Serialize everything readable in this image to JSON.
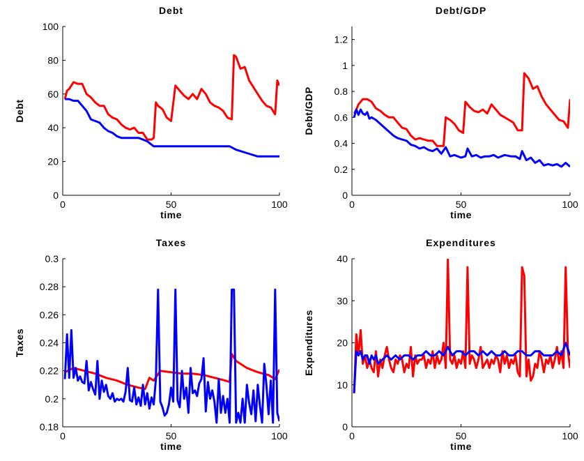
{
  "chart_data": [
    {
      "type": "line",
      "title": "Debt",
      "xlabel": "time",
      "ylabel": "Debt",
      "xlim": [
        0,
        100
      ],
      "ylim": [
        0,
        100
      ],
      "xticks": [
        0,
        50,
        100
      ],
      "yticks": [
        0,
        20,
        40,
        60,
        80,
        100
      ],
      "grid": false,
      "series": [
        {
          "color": "#ff0000",
          "x": [
            1,
            2,
            3,
            5,
            7,
            9,
            11,
            13,
            15,
            17,
            19,
            21,
            23,
            25,
            27,
            29,
            31,
            33,
            35,
            37,
            39,
            41,
            42,
            43,
            44,
            46,
            48,
            50,
            52,
            54,
            56,
            58,
            60,
            62,
            64,
            66,
            68,
            70,
            72,
            74,
            76,
            78,
            79,
            80,
            82,
            84,
            86,
            88,
            90,
            92,
            94,
            96,
            98,
            99,
            100
          ],
          "y": [
            57,
            62,
            63,
            67,
            66,
            66,
            60,
            58,
            55,
            53,
            53,
            48,
            46,
            45,
            42,
            40,
            39,
            40,
            37,
            37,
            33,
            33,
            34,
            55,
            53,
            51,
            46,
            44,
            65,
            62,
            59,
            57,
            60,
            57,
            63,
            60,
            55,
            53,
            52,
            50,
            46,
            45,
            83,
            82,
            75,
            76,
            68,
            64,
            60,
            56,
            53,
            52,
            48,
            68,
            65
          ]
        },
        {
          "color": "#0000ff",
          "x": [
            1,
            3,
            5,
            7,
            9,
            11,
            13,
            15,
            17,
            19,
            21,
            23,
            25,
            27,
            29,
            31,
            33,
            35,
            37,
            39,
            41,
            42,
            45,
            50,
            55,
            60,
            65,
            70,
            75,
            77,
            80,
            85,
            90,
            95,
            98,
            100
          ],
          "y": [
            57,
            57,
            56,
            56,
            53,
            50,
            45,
            44,
            43,
            40,
            38,
            37,
            35,
            34,
            34,
            34,
            34,
            34,
            33,
            32,
            30,
            29,
            29,
            29,
            29,
            29,
            29,
            29,
            29,
            29,
            27,
            25,
            23,
            23,
            23,
            23
          ]
        }
      ]
    },
    {
      "type": "line",
      "title": "Debt/GDP",
      "xlabel": "time",
      "ylabel": "Debt/GDP",
      "xlim": [
        0,
        100
      ],
      "ylim": [
        0,
        1.3
      ],
      "xticks": [
        0,
        50,
        100
      ],
      "yticks": [
        0,
        0.2,
        0.4,
        0.6,
        0.8,
        1,
        1.2
      ],
      "grid": false,
      "series": [
        {
          "color": "#ff0000",
          "x": [
            1,
            2,
            3,
            5,
            7,
            9,
            11,
            13,
            15,
            17,
            19,
            21,
            23,
            25,
            27,
            29,
            31,
            33,
            35,
            37,
            39,
            41,
            42,
            43,
            45,
            47,
            49,
            51,
            52,
            54,
            56,
            58,
            60,
            62,
            64,
            66,
            68,
            70,
            72,
            74,
            76,
            78,
            79,
            81,
            83,
            85,
            87,
            89,
            91,
            93,
            95,
            97,
            99,
            100
          ],
          "y": [
            0.63,
            0.66,
            0.7,
            0.74,
            0.74,
            0.72,
            0.67,
            0.65,
            0.62,
            0.6,
            0.6,
            0.56,
            0.52,
            0.51,
            0.46,
            0.43,
            0.44,
            0.43,
            0.42,
            0.42,
            0.38,
            0.38,
            0.38,
            0.6,
            0.58,
            0.55,
            0.5,
            0.48,
            0.72,
            0.68,
            0.65,
            0.64,
            0.66,
            0.63,
            0.7,
            0.66,
            0.62,
            0.6,
            0.58,
            0.56,
            0.5,
            0.5,
            0.94,
            0.9,
            0.82,
            0.84,
            0.76,
            0.7,
            0.66,
            0.62,
            0.58,
            0.57,
            0.52,
            0.74
          ]
        },
        {
          "color": "#0000ff",
          "x": [
            1,
            2,
            3,
            4,
            5,
            6,
            7,
            8,
            9,
            11,
            13,
            15,
            17,
            19,
            21,
            23,
            25,
            27,
            29,
            31,
            33,
            35,
            37,
            39,
            41,
            43,
            45,
            47,
            50,
            52,
            53,
            55,
            57,
            59,
            61,
            63,
            65,
            67,
            70,
            73,
            75,
            77,
            78,
            80,
            82,
            84,
            86,
            88,
            90,
            92,
            94,
            96,
            98,
            100
          ],
          "y": [
            0.6,
            0.66,
            0.62,
            0.66,
            0.63,
            0.62,
            0.64,
            0.59,
            0.6,
            0.58,
            0.55,
            0.52,
            0.49,
            0.46,
            0.44,
            0.43,
            0.42,
            0.39,
            0.38,
            0.36,
            0.37,
            0.35,
            0.34,
            0.36,
            0.32,
            0.37,
            0.3,
            0.31,
            0.29,
            0.3,
            0.36,
            0.3,
            0.31,
            0.29,
            0.3,
            0.3,
            0.31,
            0.29,
            0.31,
            0.3,
            0.3,
            0.28,
            0.34,
            0.27,
            0.29,
            0.25,
            0.27,
            0.23,
            0.24,
            0.23,
            0.24,
            0.22,
            0.25,
            0.22
          ]
        }
      ]
    },
    {
      "type": "line",
      "title": "Taxes",
      "xlabel": "time",
      "ylabel": "Taxes",
      "xlim": [
        0,
        100
      ],
      "ylim": [
        0.18,
        0.3
      ],
      "xticks": [
        0,
        50,
        100
      ],
      "yticks": [
        0.18,
        0.2,
        0.22,
        0.24,
        0.26,
        0.28,
        0.3
      ],
      "grid": false,
      "series": [
        {
          "color": "#ff0000",
          "x": [
            1,
            5,
            10,
            15,
            20,
            25,
            30,
            35,
            38,
            40,
            42,
            45,
            50,
            55,
            60,
            65,
            70,
            75,
            77,
            78,
            80,
            85,
            90,
            95,
            98,
            100
          ],
          "y": [
            0.219,
            0.222,
            0.22,
            0.218,
            0.215,
            0.213,
            0.21,
            0.208,
            0.207,
            0.215,
            0.213,
            0.22,
            0.219,
            0.218,
            0.218,
            0.217,
            0.215,
            0.213,
            0.212,
            0.232,
            0.227,
            0.222,
            0.219,
            0.217,
            0.214,
            0.221
          ]
        },
        {
          "color": "#0000ff",
          "x": [
            1,
            2,
            3,
            4,
            5,
            6,
            7,
            8,
            9,
            10,
            11,
            12,
            13,
            14,
            15,
            16,
            17,
            18,
            19,
            20,
            21,
            22,
            23,
            24,
            25,
            26,
            27,
            28,
            29,
            30,
            31,
            32,
            33,
            34,
            35,
            36,
            37,
            38,
            39,
            40,
            41,
            42,
            43,
            44,
            45,
            46,
            47,
            48,
            49,
            50,
            51,
            52,
            53,
            54,
            55,
            56,
            57,
            58,
            59,
            60,
            61,
            62,
            63,
            64,
            65,
            66,
            67,
            68,
            69,
            70,
            71,
            72,
            73,
            74,
            75,
            76,
            77,
            78,
            79,
            80,
            81,
            82,
            83,
            84,
            85,
            86,
            87,
            88,
            89,
            90,
            91,
            92,
            93,
            94,
            95,
            96,
            97,
            98,
            99,
            100
          ],
          "y": [
            0.214,
            0.246,
            0.215,
            0.249,
            0.215,
            0.222,
            0.213,
            0.216,
            0.212,
            0.211,
            0.227,
            0.206,
            0.212,
            0.207,
            0.203,
            0.227,
            0.2,
            0.213,
            0.205,
            0.21,
            0.202,
            0.2,
            0.204,
            0.198,
            0.2,
            0.199,
            0.2,
            0.198,
            0.205,
            0.222,
            0.199,
            0.198,
            0.208,
            0.196,
            0.201,
            0.195,
            0.21,
            0.196,
            0.204,
            0.193,
            0.201,
            0.196,
            0.214,
            0.278,
            0.198,
            0.194,
            0.188,
            0.19,
            0.196,
            0.208,
            0.198,
            0.278,
            0.199,
            0.194,
            0.22,
            0.2,
            0.208,
            0.19,
            0.222,
            0.204,
            0.206,
            0.202,
            0.211,
            0.214,
            0.229,
            0.191,
            0.212,
            0.2,
            0.206,
            0.198,
            0.183,
            0.214,
            0.19,
            0.202,
            0.19,
            0.2,
            0.183,
            0.278,
            0.278,
            0.183,
            0.19,
            0.183,
            0.2,
            0.183,
            0.21,
            0.197,
            0.189,
            0.206,
            0.184,
            0.21,
            0.195,
            0.183,
            0.225,
            0.21,
            0.189,
            0.213,
            0.183,
            0.278,
            0.19,
            0.184
          ]
        }
      ]
    },
    {
      "type": "line",
      "title": "Expenditures",
      "xlabel": "time",
      "ylabel": "Expenditures",
      "xlim": [
        0,
        100
      ],
      "ylim": [
        0,
        40
      ],
      "xticks": [
        0,
        50,
        100
      ],
      "yticks": [
        0,
        10,
        20,
        30,
        40
      ],
      "grid": false,
      "series": [
        {
          "color": "#ff0000",
          "x": [
            1,
            2,
            3,
            4,
            5,
            6,
            7,
            8,
            9,
            10,
            11,
            12,
            13,
            14,
            15,
            16,
            17,
            18,
            19,
            20,
            21,
            22,
            23,
            24,
            25,
            26,
            27,
            28,
            29,
            30,
            31,
            32,
            33,
            34,
            35,
            36,
            37,
            38,
            39,
            40,
            41,
            42,
            43,
            44,
            45,
            46,
            47,
            48,
            49,
            50,
            51,
            52,
            53,
            54,
            55,
            56,
            57,
            58,
            59,
            60,
            61,
            62,
            63,
            64,
            65,
            66,
            67,
            68,
            69,
            70,
            71,
            72,
            73,
            74,
            75,
            76,
            77,
            78,
            79,
            80,
            81,
            82,
            83,
            84,
            85,
            86,
            87,
            88,
            89,
            90,
            91,
            92,
            93,
            94,
            95,
            96,
            97,
            98,
            99,
            100
          ],
          "y": [
            8,
            22,
            17,
            23,
            15,
            17,
            14,
            16,
            14,
            13,
            18,
            12,
            16,
            14,
            17,
            19,
            16,
            14,
            13,
            16,
            15,
            17,
            16,
            13,
            15,
            14,
            19,
            12,
            17,
            15,
            16,
            16,
            17,
            14,
            16,
            15,
            18,
            14,
            17,
            15,
            16,
            20,
            14,
            40,
            16,
            15,
            17,
            14,
            16,
            15,
            18,
            14,
            38,
            15,
            17,
            16,
            14,
            16,
            19,
            14,
            15,
            16,
            14,
            16,
            15,
            17,
            16,
            13,
            18,
            15,
            17,
            14,
            16,
            15,
            17,
            13,
            12,
            38,
            36,
            12,
            16,
            11,
            12,
            15,
            14,
            18,
            16,
            13,
            16,
            15,
            17,
            14,
            16,
            19,
            15,
            18,
            14,
            38,
            18,
            14
          ]
        },
        {
          "color": "#0000ff",
          "x": [
            1,
            2,
            3,
            4,
            5,
            6,
            7,
            8,
            9,
            10,
            11,
            12,
            14,
            16,
            18,
            20,
            22,
            24,
            26,
            28,
            30,
            32,
            34,
            36,
            38,
            40,
            42,
            44,
            46,
            48,
            50,
            52,
            54,
            56,
            58,
            60,
            62,
            64,
            66,
            68,
            70,
            72,
            74,
            76,
            78,
            80,
            82,
            84,
            86,
            88,
            90,
            92,
            94,
            96,
            98,
            100
          ],
          "y": [
            8,
            18,
            17,
            18,
            16,
            17,
            17,
            15,
            17,
            16,
            17,
            15,
            16,
            17,
            16,
            17,
            16,
            17,
            17,
            16,
            17,
            17,
            18,
            17,
            17,
            18,
            17,
            19,
            17,
            18,
            18,
            17,
            18,
            18,
            17,
            18,
            17,
            18,
            17,
            17,
            18,
            17,
            17,
            18,
            18,
            17,
            17,
            18,
            18,
            17,
            17,
            17,
            18,
            17,
            20,
            17
          ]
        }
      ]
    }
  ]
}
